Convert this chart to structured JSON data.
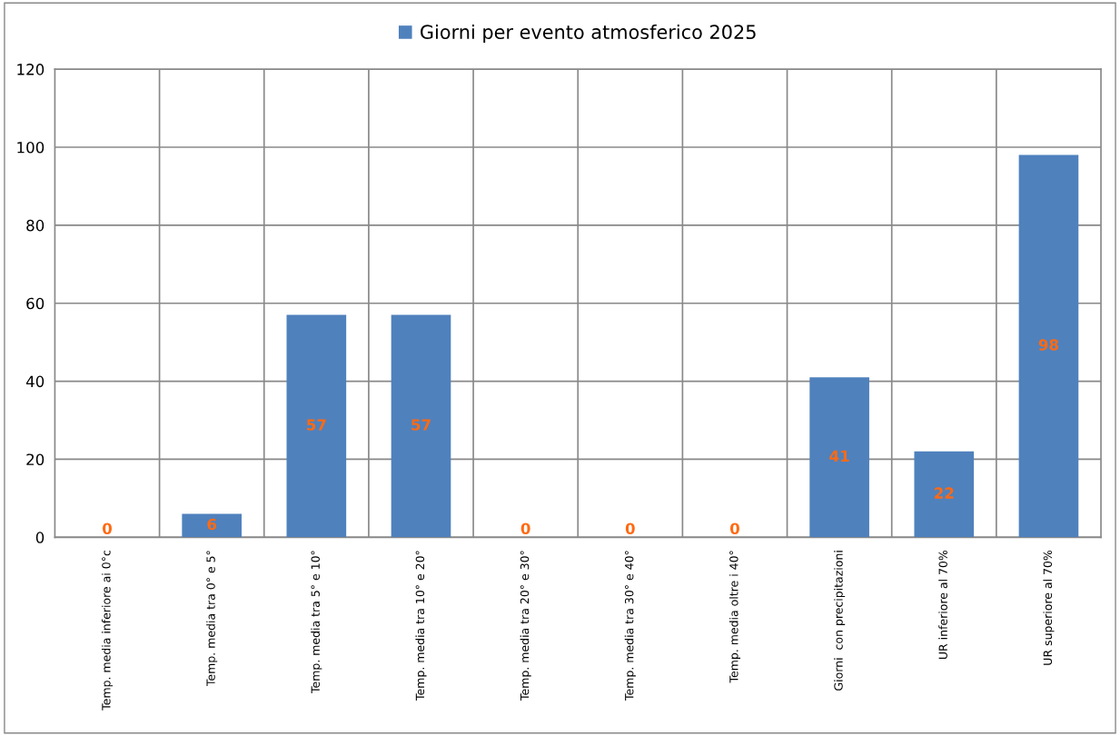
{
  "chart_data": {
    "type": "bar",
    "categories": [
      "Temp. media inferiore ai 0°c",
      "Temp. media tra 0° e 5°",
      "Temp. media tra 5° e 10°",
      "Temp. media tra 10° e 20°",
      "Temp. media tra 20° e 30°",
      "Temp. media tra 30° e 40°",
      "Temp. media oltre i 40°",
      "Giorni  con precipitazioni",
      "UR inferiore al 70%",
      "UR superiore al 70%"
    ],
    "series": [
      {
        "name": "Giorni per evento atmosferico 2025",
        "color": "#4f81bd",
        "values": [
          0,
          6,
          57,
          57,
          0,
          0,
          0,
          41,
          22,
          98
        ]
      }
    ],
    "ylim": [
      0,
      120
    ],
    "yticks": [
      0,
      20,
      40,
      60,
      80,
      100,
      120
    ],
    "grid": true,
    "legend": "top",
    "data_labels": true
  }
}
